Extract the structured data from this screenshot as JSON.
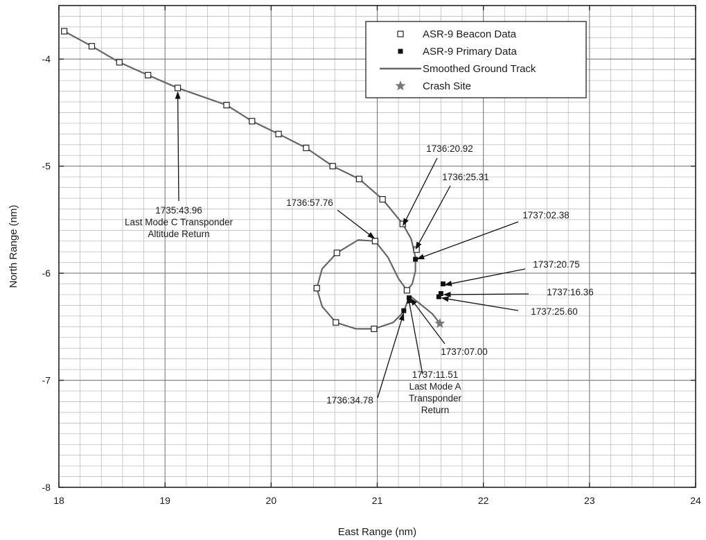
{
  "chart_data": {
    "type": "scatter",
    "xlabel": "East Range (nm)",
    "ylabel": "North Range (nm)",
    "xlim": [
      18,
      24
    ],
    "ylim": [
      -8,
      -3.5
    ],
    "x_ticks": [
      18,
      19,
      20,
      21,
      22,
      23,
      24
    ],
    "y_ticks": [
      -8,
      -7,
      -6,
      -5,
      -4
    ],
    "x_tick_labels": [
      "18",
      "19",
      "20",
      "21",
      "22",
      "23",
      "24"
    ],
    "y_tick_labels": [
      "-8",
      "-7",
      "-6",
      "-5",
      "-4"
    ],
    "grid": true,
    "legend_position": "top-right",
    "series": [
      {
        "name": "ASR-9 Beacon Data",
        "marker": "open-square",
        "color": "#222222",
        "points": [
          [
            18.05,
            -3.74
          ],
          [
            18.31,
            -3.88
          ],
          [
            18.57,
            -4.03
          ],
          [
            18.84,
            -4.15
          ],
          [
            19.12,
            -4.27
          ],
          [
            19.58,
            -4.43
          ],
          [
            19.82,
            -4.58
          ],
          [
            20.07,
            -4.7
          ],
          [
            20.33,
            -4.83
          ],
          [
            20.58,
            -5.0
          ],
          [
            20.83,
            -5.12
          ],
          [
            21.05,
            -5.31
          ],
          [
            21.24,
            -5.54
          ],
          [
            21.37,
            -5.78
          ],
          [
            21.28,
            -6.16
          ],
          [
            20.98,
            -5.7
          ],
          [
            20.62,
            -5.81
          ],
          [
            20.43,
            -6.14
          ],
          [
            20.61,
            -6.46
          ],
          [
            20.97,
            -6.52
          ]
        ]
      },
      {
        "name": "ASR-9 Primary Data",
        "marker": "filled-square",
        "color": "#111111",
        "points": [
          [
            21.36,
            -5.87
          ],
          [
            21.25,
            -6.35
          ],
          [
            21.3,
            -6.23
          ],
          [
            21.6,
            -6.19
          ],
          [
            21.58,
            -6.22
          ],
          [
            21.62,
            -6.1
          ]
        ]
      },
      {
        "name": "Smoothed Ground Track",
        "marker": "line",
        "color": "#666666",
        "points": [
          [
            18.05,
            -3.74
          ],
          [
            18.31,
            -3.88
          ],
          [
            18.57,
            -4.03
          ],
          [
            18.84,
            -4.15
          ],
          [
            19.12,
            -4.27
          ],
          [
            19.58,
            -4.43
          ],
          [
            19.82,
            -4.58
          ],
          [
            20.07,
            -4.7
          ],
          [
            20.33,
            -4.83
          ],
          [
            20.58,
            -5.0
          ],
          [
            20.83,
            -5.12
          ],
          [
            21.05,
            -5.31
          ],
          [
            21.24,
            -5.54
          ],
          [
            21.32,
            -5.68
          ],
          [
            21.36,
            -5.85
          ],
          [
            21.36,
            -5.98
          ],
          [
            21.33,
            -6.1
          ],
          [
            21.28,
            -6.16
          ],
          [
            21.2,
            -6.05
          ],
          [
            21.1,
            -5.85
          ],
          [
            20.98,
            -5.7
          ],
          [
            20.82,
            -5.69
          ],
          [
            20.62,
            -5.81
          ],
          [
            20.48,
            -5.96
          ],
          [
            20.43,
            -6.14
          ],
          [
            20.48,
            -6.31
          ],
          [
            20.61,
            -6.46
          ],
          [
            20.8,
            -6.52
          ],
          [
            20.97,
            -6.52
          ],
          [
            21.15,
            -6.46
          ],
          [
            21.25,
            -6.36
          ],
          [
            21.29,
            -6.25
          ],
          [
            21.32,
            -6.22
          ],
          [
            21.42,
            -6.3
          ],
          [
            21.52,
            -6.38
          ],
          [
            21.59,
            -6.47
          ]
        ]
      },
      {
        "name": "Crash Site",
        "marker": "star",
        "color": "#777777",
        "points": [
          [
            21.59,
            -6.47
          ]
        ]
      }
    ],
    "annotations": [
      {
        "id": "a1",
        "lines": [
          "1735:43.96",
          "Last Mode C Transponder",
          "Altitude Return"
        ],
        "target": [
          19.12,
          -4.3
        ]
      },
      {
        "id": "a2",
        "lines": [
          "1736:20.92"
        ],
        "target": [
          21.24,
          -5.56
        ]
      },
      {
        "id": "a3",
        "lines": [
          "1736:25.31"
        ],
        "target": [
          21.36,
          -5.78
        ]
      },
      {
        "id": "a4",
        "lines": [
          "1736:57.76"
        ],
        "target": [
          20.98,
          -5.68
        ]
      },
      {
        "id": "a5",
        "lines": [
          "1737:02.38"
        ],
        "target": [
          21.37,
          -5.87
        ]
      },
      {
        "id": "a6",
        "lines": [
          "1737:20.75"
        ],
        "target": [
          21.63,
          -6.11
        ]
      },
      {
        "id": "a7",
        "lines": [
          "1737:16.36"
        ],
        "target": [
          21.62,
          -6.2
        ]
      },
      {
        "id": "a8",
        "lines": [
          "1737:25.60"
        ],
        "target": [
          21.6,
          -6.23
        ]
      },
      {
        "id": "a9",
        "lines": [
          "1737:07.00"
        ],
        "target": [
          21.31,
          -6.23
        ]
      },
      {
        "id": "a10",
        "lines": [
          "1737:11.51",
          "Last Mode A",
          "Transponder",
          "Return"
        ],
        "target": [
          21.29,
          -6.21
        ]
      },
      {
        "id": "a11",
        "lines": [
          "1736:34.78"
        ],
        "target": [
          21.25,
          -6.37
        ]
      }
    ]
  }
}
